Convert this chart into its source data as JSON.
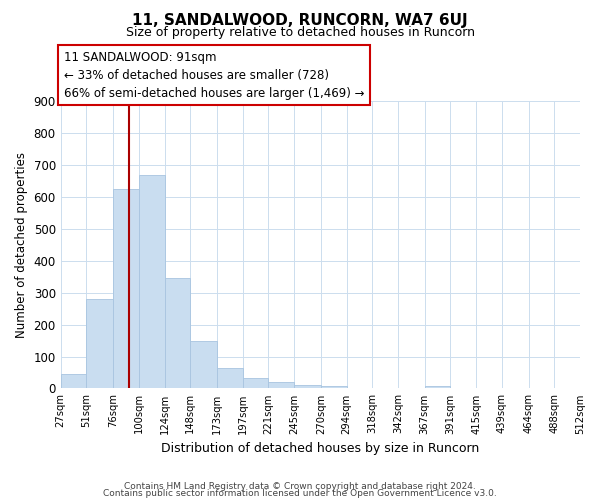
{
  "title1": "11, SANDALWOOD, RUNCORN, WA7 6UJ",
  "title2": "Size of property relative to detached houses in Runcorn",
  "xlabel": "Distribution of detached houses by size in Runcorn",
  "ylabel": "Number of detached properties",
  "bar_edges": [
    27,
    51,
    76,
    100,
    124,
    148,
    173,
    197,
    221,
    245,
    270,
    294,
    318,
    342,
    367,
    391,
    415,
    439,
    464,
    488,
    512
  ],
  "bar_heights": [
    45,
    280,
    625,
    670,
    345,
    148,
    65,
    32,
    20,
    10,
    8,
    0,
    0,
    0,
    8,
    0,
    0,
    0,
    0,
    0
  ],
  "bar_color": "#c9ddf0",
  "bar_edge_color": "#a8c4e0",
  "property_sqm": 91,
  "vline_color": "#aa0000",
  "annotation_box_edge": "#cc0000",
  "annotation_line1": "11 SANDALWOOD: 91sqm",
  "annotation_line2": "← 33% of detached houses are smaller (728)",
  "annotation_line3": "66% of semi-detached houses are larger (1,469) →",
  "ylim": [
    0,
    900
  ],
  "yticks": [
    0,
    100,
    200,
    300,
    400,
    500,
    600,
    700,
    800,
    900
  ],
  "tick_labels": [
    "27sqm",
    "51sqm",
    "76sqm",
    "100sqm",
    "124sqm",
    "148sqm",
    "173sqm",
    "197sqm",
    "221sqm",
    "245sqm",
    "270sqm",
    "294sqm",
    "318sqm",
    "342sqm",
    "367sqm",
    "391sqm",
    "415sqm",
    "439sqm",
    "464sqm",
    "488sqm",
    "512sqm"
  ],
  "footer1": "Contains HM Land Registry data © Crown copyright and database right 2024.",
  "footer2": "Contains public sector information licensed under the Open Government Licence v3.0.",
  "bg_color": "#ffffff",
  "grid_color": "#ccddee"
}
